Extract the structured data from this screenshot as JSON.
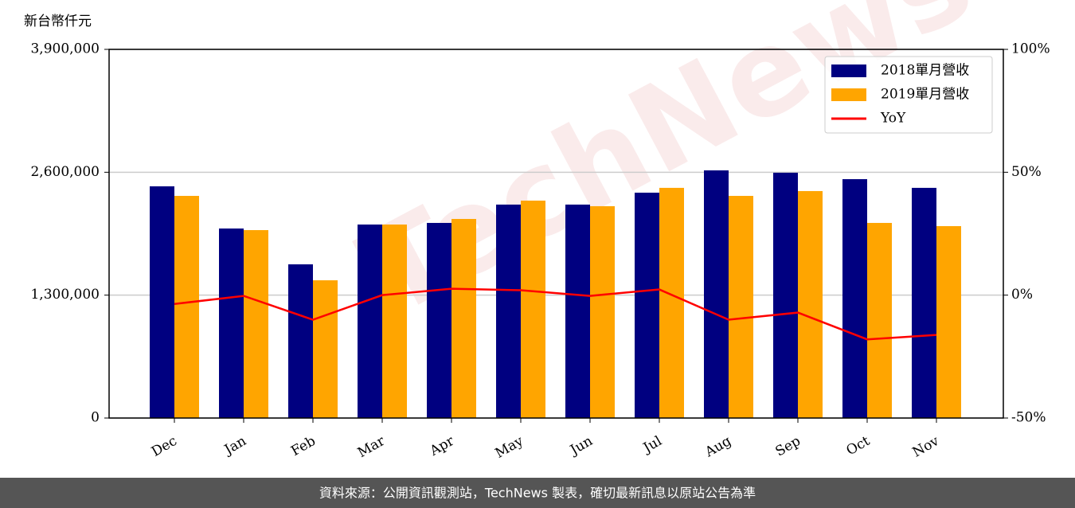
{
  "chart_data": {
    "type": "bar",
    "y_label": "新台幣仟元",
    "watermark": "TechNews",
    "footer": "資料來源：公開資訊觀測站，TechNews 製表，確切最新訊息以原站公告為準",
    "categories": [
      "Dec",
      "Jan",
      "Feb",
      "Mar",
      "Apr",
      "May",
      "Jun",
      "Jul",
      "Aug",
      "Sep",
      "Oct",
      "Nov"
    ],
    "series": [
      {
        "name": "2018單月營收",
        "color": "#000080",
        "type": "bar",
        "values": [
          2451000,
          2005000,
          1626000,
          2047000,
          2064000,
          2258000,
          2258000,
          2384000,
          2620000,
          2595000,
          2527000,
          2435000
        ]
      },
      {
        "name": "2019單月營收",
        "color": "#ffa500",
        "type": "bar",
        "values": [
          2350000,
          1988000,
          1457000,
          2047000,
          2106000,
          2300000,
          2241000,
          2435000,
          2350000,
          2401000,
          2064000,
          2030000
        ]
      },
      {
        "name": "YoY",
        "color": "#ff0000",
        "type": "line",
        "axis": "y2",
        "values": [
          -3.6,
          -0.3,
          -10,
          0,
          2.6,
          2,
          -0.3,
          2.3,
          -10,
          -7.1,
          -18,
          -16.2
        ]
      }
    ],
    "ylim": [
      0,
      3900000
    ],
    "yticks": [
      0,
      {
        "value": 1300000,
        "label": "1,300,000"
      },
      {
        "value": 2600000,
        "label": "2,600,000"
      },
      {
        "value": 3900000,
        "label": "3,900,000"
      }
    ],
    "y2lim": [
      -50,
      100
    ],
    "y2ticks": [
      {
        "value": -50,
        "label": "-50%"
      },
      {
        "value": 0,
        "label": "0%"
      },
      {
        "value": 50,
        "label": "50%"
      },
      {
        "value": 100,
        "label": "100%"
      }
    ],
    "grid": true,
    "legend": "upper right"
  }
}
